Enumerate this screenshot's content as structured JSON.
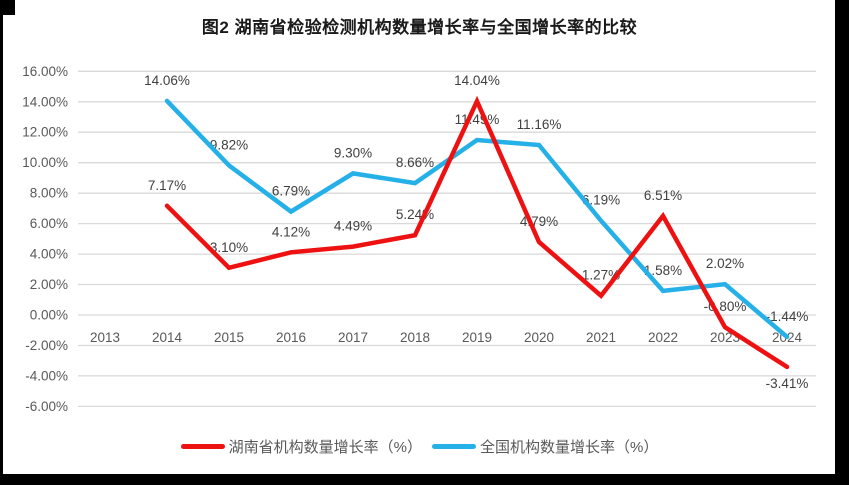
{
  "title": "图2 湖南省检验检测机构数量增长率与全国增长率的比较",
  "colors": {
    "background": "#FFFFFF",
    "frame": "#000000",
    "gridline": "#D9D9D9",
    "axis_text": "#595959",
    "data_label_text": "#404040",
    "title_text": "#1A1A1A",
    "hunan_series": "#EE1111",
    "national_series": "#25B0E8"
  },
  "chart_data": {
    "type": "line",
    "title": "图2 湖南省检验检测机构数量增长率与全国增长率的比较",
    "categories": [
      "2013",
      "2014",
      "2015",
      "2016",
      "2017",
      "2018",
      "2019",
      "2020",
      "2021",
      "2022",
      "2023",
      "2024"
    ],
    "series": [
      {
        "name": "湖南省机构数量增长率（%）",
        "color": "#EE1111",
        "values": [
          null,
          7.17,
          3.1,
          4.12,
          4.49,
          5.24,
          14.04,
          4.79,
          1.27,
          6.51,
          -0.8,
          -3.41
        ],
        "labels": [
          null,
          "7.17%",
          "3.10%",
          "4.12%",
          "4.49%",
          "5.24%",
          "14.04%",
          "4.79%",
          "1.27%",
          "6.51%",
          "-0.80%",
          "-3.41%"
        ],
        "labels_below": [
          "2024"
        ]
      },
      {
        "name": "全国机构数量增长率（%）",
        "color": "#25B0E8",
        "values": [
          null,
          14.06,
          9.82,
          6.79,
          9.3,
          8.66,
          11.49,
          11.16,
          6.19,
          1.58,
          2.02,
          -1.44
        ],
        "labels": [
          null,
          "14.06%",
          "9.82%",
          "6.79%",
          "9.30%",
          "8.66%",
          "11.49%",
          "11.16%",
          "6.19%",
          "1.58%",
          "2.02%",
          "-1.44%"
        ],
        "labels_below": []
      }
    ],
    "xlabel": "",
    "ylabel": "",
    "ylim": [
      -6,
      16
    ],
    "ytick_step": 2,
    "ytick_format": "percent_2dp",
    "ytick_labels": [
      "16.00%",
      "14.00%",
      "12.00%",
      "10.00%",
      "8.00%",
      "6.00%",
      "4.00%",
      "2.00%",
      "0.00%",
      "-2.00%",
      "-4.00%",
      "-6.00%"
    ],
    "grid": true,
    "legend_position": "bottom"
  },
  "legend": {
    "hunan_label": "湖南省机构数量增长率（%）",
    "national_label": "全国机构数量增长率（%）"
  }
}
